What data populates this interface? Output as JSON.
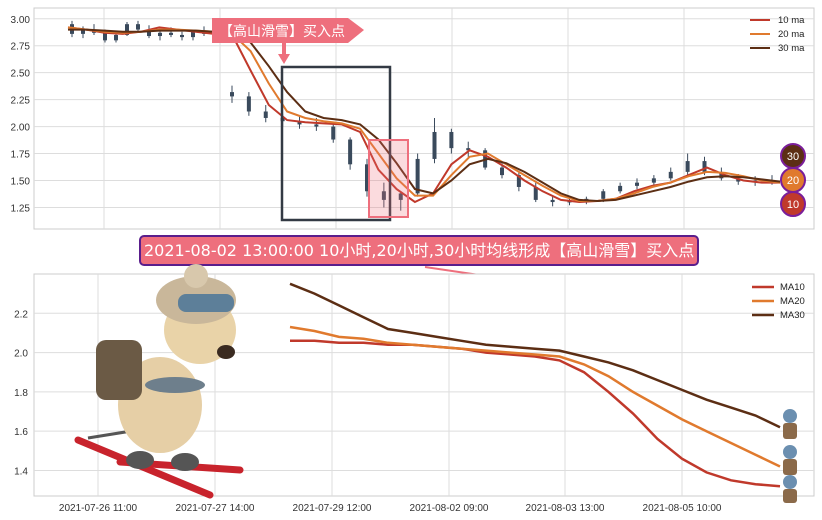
{
  "chart_data": [
    {
      "type": "candlestick",
      "title": "",
      "ylim": [
        1.05,
        3.1
      ],
      "yticks": [
        1.25,
        1.5,
        1.75,
        2.0,
        2.25,
        2.5,
        2.75,
        3.0
      ],
      "ytick_labels": [
        "1.25",
        "1.50",
        "1.75",
        "2.00",
        "2.25",
        "2.50",
        "2.75",
        "3.00"
      ],
      "grid": true,
      "legend_position": "top-right",
      "callout": "【高山滑雪】买入点",
      "signal_badges": [
        "30",
        "20",
        "10"
      ],
      "series": [
        {
          "name": "10 ma",
          "color": "#c0392b",
          "values": [
            2.92,
            2.9,
            2.87,
            2.86,
            2.88,
            2.92,
            2.9,
            2.88,
            2.86,
            2.85,
            2.52,
            2.2,
            2.06,
            2.04,
            2.03,
            2.02,
            1.95,
            1.6,
            1.42,
            1.3,
            1.38,
            1.65,
            1.78,
            1.72,
            1.62,
            1.5,
            1.4,
            1.32,
            1.3,
            1.31,
            1.33,
            1.4,
            1.45,
            1.48,
            1.55,
            1.62,
            1.55,
            1.5,
            1.48,
            1.48
          ]
        },
        {
          "name": "20 ma",
          "color": "#e07a2e",
          "values": [
            2.92,
            2.9,
            2.88,
            2.87,
            2.88,
            2.9,
            2.9,
            2.89,
            2.88,
            2.86,
            2.7,
            2.4,
            2.14,
            2.08,
            2.05,
            2.03,
            1.98,
            1.75,
            1.52,
            1.36,
            1.36,
            1.55,
            1.72,
            1.75,
            1.65,
            1.55,
            1.45,
            1.36,
            1.31,
            1.31,
            1.33,
            1.38,
            1.44,
            1.48,
            1.54,
            1.58,
            1.57,
            1.54,
            1.5,
            1.48
          ]
        },
        {
          "name": "30 ma",
          "color": "#5c2e14",
          "values": [
            2.9,
            2.9,
            2.89,
            2.88,
            2.88,
            2.89,
            2.89,
            2.89,
            2.88,
            2.87,
            2.78,
            2.56,
            2.32,
            2.14,
            2.08,
            2.06,
            2.02,
            1.88,
            1.66,
            1.42,
            1.38,
            1.5,
            1.65,
            1.7,
            1.66,
            1.58,
            1.48,
            1.38,
            1.32,
            1.31,
            1.32,
            1.36,
            1.4,
            1.44,
            1.49,
            1.53,
            1.54,
            1.53,
            1.51,
            1.49
          ]
        }
      ],
      "candles": [
        [
          2.95,
          2.98,
          2.83,
          2.86
        ],
        [
          2.86,
          2.93,
          2.82,
          2.9
        ],
        [
          2.9,
          2.95,
          2.85,
          2.87
        ],
        [
          2.87,
          2.9,
          2.78,
          2.8
        ],
        [
          2.8,
          2.88,
          2.78,
          2.85
        ],
        [
          2.85,
          2.97,
          2.84,
          2.95
        ],
        [
          2.95,
          2.98,
          2.88,
          2.9
        ],
        [
          2.9,
          2.94,
          2.82,
          2.84
        ],
        [
          2.84,
          2.9,
          2.8,
          2.87
        ],
        [
          2.87,
          2.92,
          2.83,
          2.85
        ],
        [
          2.85,
          2.88,
          2.8,
          2.83
        ],
        [
          2.83,
          2.9,
          2.8,
          2.88
        ],
        [
          2.88,
          2.93,
          2.84,
          2.86
        ],
        [
          2.86,
          2.92,
          2.82,
          2.9
        ],
        [
          2.9,
          2.95,
          2.86,
          2.88
        ],
        [
          2.32,
          2.38,
          2.22,
          2.28
        ],
        [
          2.28,
          2.32,
          2.1,
          2.14
        ],
        [
          2.14,
          2.2,
          2.04,
          2.08
        ],
        [
          2.08,
          2.12,
          2.0,
          2.05
        ],
        [
          2.05,
          2.1,
          1.98,
          2.02
        ],
        [
          2.02,
          2.08,
          1.96,
          2.0
        ],
        [
          2.0,
          2.04,
          1.85,
          1.88
        ],
        [
          1.88,
          1.9,
          1.6,
          1.65
        ],
        [
          1.65,
          1.7,
          1.35,
          1.4
        ],
        [
          1.4,
          1.48,
          1.25,
          1.32
        ],
        [
          1.32,
          1.4,
          1.22,
          1.38
        ],
        [
          1.38,
          1.75,
          1.35,
          1.7
        ],
        [
          1.7,
          2.08,
          1.66,
          1.95
        ],
        [
          1.95,
          1.98,
          1.75,
          1.8
        ],
        [
          1.8,
          1.86,
          1.72,
          1.78
        ],
        [
          1.78,
          1.8,
          1.6,
          1.62
        ],
        [
          1.62,
          1.66,
          1.52,
          1.55
        ],
        [
          1.55,
          1.58,
          1.4,
          1.44
        ],
        [
          1.44,
          1.48,
          1.3,
          1.32
        ],
        [
          1.32,
          1.36,
          1.26,
          1.3
        ],
        [
          1.3,
          1.34,
          1.27,
          1.31
        ],
        [
          1.31,
          1.35,
          1.28,
          1.33
        ],
        [
          1.33,
          1.42,
          1.3,
          1.4
        ],
        [
          1.4,
          1.48,
          1.38,
          1.45
        ],
        [
          1.45,
          1.52,
          1.42,
          1.48
        ],
        [
          1.48,
          1.55,
          1.45,
          1.52
        ],
        [
          1.52,
          1.62,
          1.5,
          1.58
        ],
        [
          1.58,
          1.75,
          1.55,
          1.68
        ],
        [
          1.68,
          1.72,
          1.55,
          1.58
        ],
        [
          1.58,
          1.62,
          1.5,
          1.52
        ],
        [
          1.52,
          1.56,
          1.46,
          1.49
        ],
        [
          1.49,
          1.54,
          1.45,
          1.5
        ],
        [
          1.5,
          1.55,
          1.46,
          1.48
        ]
      ]
    },
    {
      "type": "line",
      "title": "",
      "ylim": [
        1.27,
        2.4
      ],
      "yticks": [
        1.4,
        1.6,
        1.8,
        2.0,
        2.2
      ],
      "ytick_labels": [
        "1.4",
        "1.6",
        "1.8",
        "2.0",
        "2.2"
      ],
      "grid": true,
      "legend_position": "top-right",
      "x_tick_labels": [
        "2021-07-26 11:00",
        "2021-07-27 14:00",
        "2021-07-29 12:00",
        "2021-08-02 09:00",
        "2021-08-03 13:00",
        "2021-08-05 10:00"
      ],
      "series": [
        {
          "name": "MA10",
          "color": "#c0392b",
          "values": [
            2.06,
            2.06,
            2.05,
            2.05,
            2.04,
            2.04,
            2.03,
            2.02,
            2.0,
            1.99,
            1.98,
            1.96,
            1.9,
            1.8,
            1.69,
            1.56,
            1.46,
            1.39,
            1.35,
            1.33,
            1.32
          ]
        },
        {
          "name": "MA20",
          "color": "#e07a2e",
          "values": [
            2.13,
            2.11,
            2.08,
            2.07,
            2.05,
            2.04,
            2.03,
            2.02,
            2.01,
            2.0,
            1.99,
            1.98,
            1.94,
            1.88,
            1.8,
            1.73,
            1.66,
            1.6,
            1.54,
            1.48,
            1.42
          ]
        },
        {
          "name": "MA30",
          "color": "#5c2e14",
          "values": [
            2.35,
            2.3,
            2.24,
            2.18,
            2.12,
            2.1,
            2.08,
            2.06,
            2.04,
            2.03,
            2.02,
            2.01,
            1.98,
            1.95,
            1.91,
            1.86,
            1.81,
            1.76,
            1.72,
            1.68,
            1.62
          ]
        }
      ]
    }
  ],
  "banner": {
    "text": "2021-08-02 13:00:00 10小时,20小时,30小时均线形成【高山滑雪】买入点"
  },
  "colors": {
    "accent_pink": "#ee6f7d",
    "banner_border": "#5a1e8c",
    "grid": "#dddddd",
    "candle": "#3a4a5c"
  }
}
